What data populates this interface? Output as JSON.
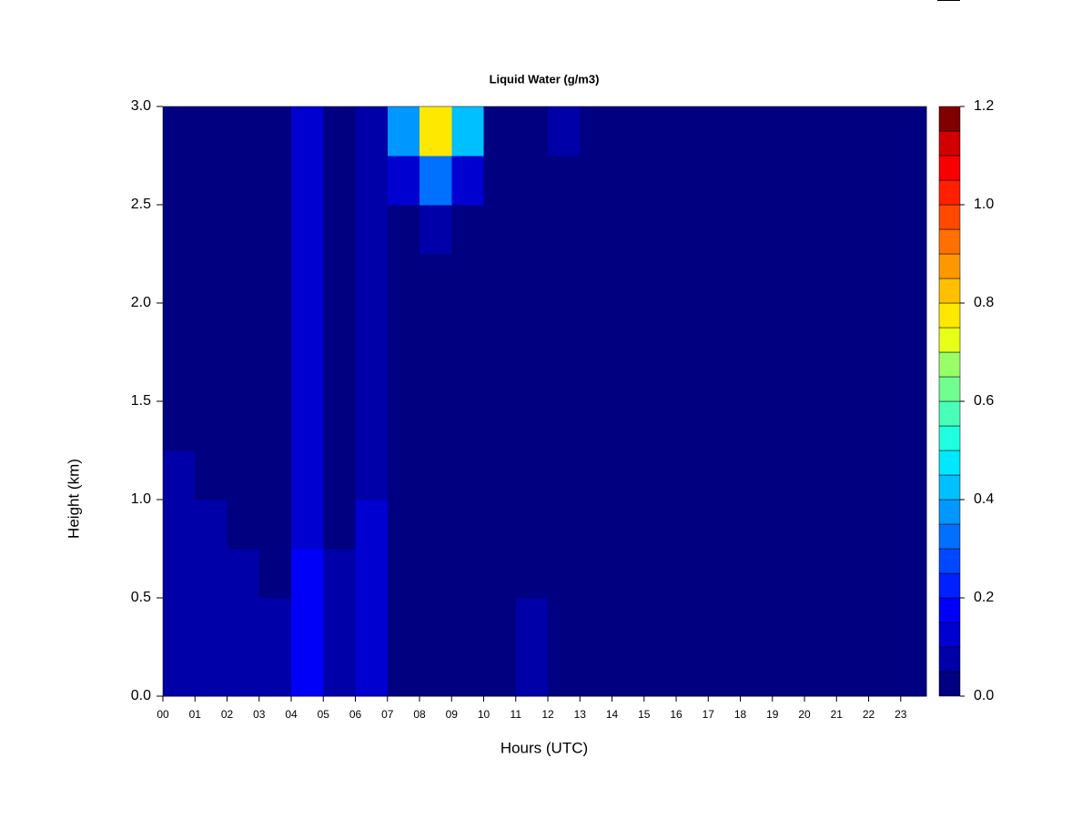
{
  "chart_data": {
    "type": "heatmap",
    "title": "Liquid Water (g/m3)",
    "x_label": "Hours (UTC)",
    "y_label": "Height (km)",
    "x": [
      0,
      1,
      2,
      3,
      4,
      5,
      6,
      7,
      8,
      9,
      10,
      11,
      12,
      13,
      14,
      15,
      16,
      17,
      18,
      19,
      20,
      21,
      22,
      23
    ],
    "y": [
      0,
      0.25,
      0.5,
      0.75,
      1,
      1.25,
      1.5,
      1.75,
      2,
      2.25,
      2.5,
      2.75
    ],
    "values": [
      [
        0.06,
        0.06,
        0.06,
        0.05,
        0.16,
        0.06,
        0.12,
        0.03,
        0.02,
        0.02,
        0.04,
        0.05,
        0.02,
        0.02,
        0.02,
        0.02,
        0.02,
        0.02,
        0.02,
        0.02,
        0.02,
        0.02,
        0.02,
        0.02
      ],
      [
        0.06,
        0.06,
        0.05,
        0.05,
        0.16,
        0.05,
        0.11,
        0.03,
        0.02,
        0.02,
        0.04,
        0.05,
        0.02,
        0.02,
        0.02,
        0.02,
        0.02,
        0.02,
        0.02,
        0.02,
        0.02,
        0.02,
        0.02,
        0.02
      ],
      [
        0.06,
        0.05,
        0.05,
        0.04,
        0.16,
        0.05,
        0.1,
        0.02,
        0.02,
        0.02,
        0.03,
        0.04,
        0.02,
        0.02,
        0.02,
        0.02,
        0.02,
        0.02,
        0.02,
        0.02,
        0.02,
        0.02,
        0.02,
        0.02
      ],
      [
        0.05,
        0.05,
        0.04,
        0.04,
        0.14,
        0.04,
        0.1,
        0.02,
        0.02,
        0.02,
        0.03,
        0.03,
        0.02,
        0.02,
        0.02,
        0.02,
        0.02,
        0.02,
        0.02,
        0.02,
        0.02,
        0.02,
        0.02,
        0.02
      ],
      [
        0.05,
        0.04,
        0.04,
        0.03,
        0.13,
        0.04,
        0.09,
        0.02,
        0.02,
        0.02,
        0.03,
        0.02,
        0.02,
        0.02,
        0.02,
        0.02,
        0.02,
        0.02,
        0.02,
        0.02,
        0.02,
        0.02,
        0.02,
        0.02
      ],
      [
        0.04,
        0.03,
        0.03,
        0.03,
        0.12,
        0.04,
        0.08,
        0.02,
        0.02,
        0.02,
        0.02,
        0.02,
        0.02,
        0.02,
        0.02,
        0.02,
        0.02,
        0.02,
        0.02,
        0.02,
        0.02,
        0.02,
        0.02,
        0.02
      ],
      [
        0.04,
        0.03,
        0.03,
        0.03,
        0.12,
        0.04,
        0.08,
        0.02,
        0.02,
        0.02,
        0.02,
        0.02,
        0.02,
        0.02,
        0.02,
        0.02,
        0.02,
        0.02,
        0.02,
        0.02,
        0.02,
        0.02,
        0.02,
        0.02
      ],
      [
        0.03,
        0.03,
        0.03,
        0.03,
        0.12,
        0.04,
        0.08,
        0.02,
        0.02,
        0.02,
        0.02,
        0.02,
        0.02,
        0.02,
        0.02,
        0.02,
        0.02,
        0.02,
        0.02,
        0.02,
        0.02,
        0.02,
        0.02,
        0.02
      ],
      [
        0.03,
        0.03,
        0.03,
        0.03,
        0.12,
        0.04,
        0.08,
        0.02,
        0.03,
        0.02,
        0.02,
        0.02,
        0.02,
        0.02,
        0.02,
        0.02,
        0.02,
        0.02,
        0.02,
        0.02,
        0.02,
        0.02,
        0.02,
        0.02
      ],
      [
        0.03,
        0.03,
        0.03,
        0.03,
        0.12,
        0.04,
        0.08,
        0.03,
        0.06,
        0.03,
        0.02,
        0.02,
        0.02,
        0.02,
        0.02,
        0.02,
        0.02,
        0.02,
        0.02,
        0.02,
        0.02,
        0.02,
        0.02,
        0.02
      ],
      [
        0.03,
        0.03,
        0.03,
        0.03,
        0.11,
        0.04,
        0.08,
        0.1,
        0.3,
        0.12,
        0.02,
        0.02,
        0.03,
        0.02,
        0.02,
        0.02,
        0.02,
        0.02,
        0.02,
        0.02,
        0.02,
        0.02,
        0.02,
        0.02
      ],
      [
        0.04,
        0.04,
        0.03,
        0.03,
        0.12,
        0.04,
        0.09,
        0.35,
        0.75,
        0.4,
        0.02,
        0.02,
        0.05,
        0.04,
        0.02,
        0.02,
        0.03,
        0.02,
        0.02,
        0.02,
        0.02,
        0.02,
        0.02,
        0.02
      ]
    ],
    "xlim": [
      0,
      23.8
    ],
    "ylim": [
      0,
      3
    ],
    "xticks": [
      {
        "value": 0,
        "label": "00"
      },
      {
        "value": 1,
        "label": "01"
      },
      {
        "value": 2,
        "label": "02"
      },
      {
        "value": 3,
        "label": "03"
      },
      {
        "value": 4,
        "label": "04"
      },
      {
        "value": 5,
        "label": "05"
      },
      {
        "value": 6,
        "label": "06"
      },
      {
        "value": 7,
        "label": "07"
      },
      {
        "value": 8,
        "label": "08"
      },
      {
        "value": 9,
        "label": "09"
      },
      10,
      11,
      12,
      13,
      14,
      15,
      16,
      17,
      18,
      19,
      20,
      21,
      22,
      23
    ],
    "yticks": [
      {
        "value": 0,
        "label": "0.0"
      },
      {
        "value": 0.5,
        "label": "0.5"
      },
      {
        "value": 1,
        "label": "1.0"
      },
      {
        "value": 1.5,
        "label": "1.5"
      },
      {
        "value": 2,
        "label": "2.0"
      },
      {
        "value": 2.5,
        "label": "2.5"
      },
      {
        "value": 3,
        "label": "3.0"
      }
    ],
    "zlim": [
      0,
      1.2
    ],
    "zticks": [
      {
        "value": 0,
        "label": "0.0"
      },
      {
        "value": 0.2,
        "label": "0.2"
      },
      {
        "value": 0.4,
        "label": "0.4"
      },
      {
        "value": 0.6,
        "label": "0.6"
      },
      {
        "value": 0.8,
        "label": "0.8"
      },
      {
        "value": 1,
        "label": "1.0"
      },
      {
        "value": 1.2,
        "label": "1.2"
      }
    ],
    "colors": [
      "#000080",
      "#0000a8",
      "#0000d0",
      "#0000f8",
      "#0020ff",
      "#0048ff",
      "#0070ff",
      "#0098ff",
      "#00c0ff",
      "#00e8ff",
      "#20ffdf",
      "#48ffb7",
      "#70ff8f",
      "#98ff67",
      "#e8ff17",
      "#ffe800",
      "#ffc000",
      "#ff9800",
      "#ff7000",
      "#ff4800",
      "#ff2000",
      "#f80000",
      "#d00000",
      "#800000"
    ]
  }
}
